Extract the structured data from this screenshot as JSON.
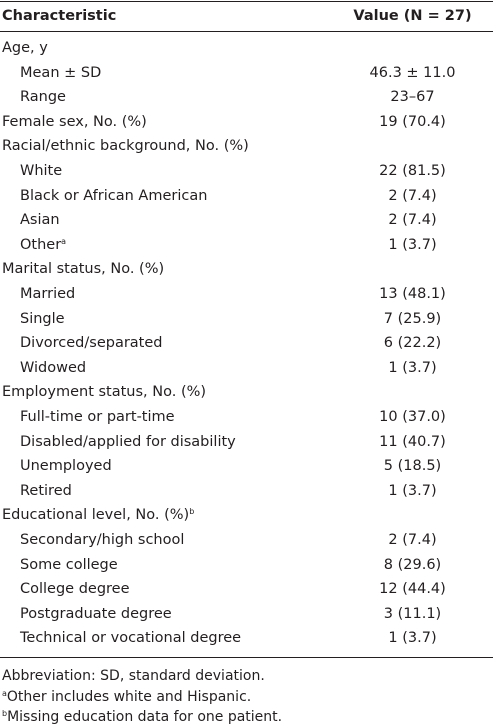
{
  "table": {
    "header": [
      "Characteristic",
      "Value (N = 27)"
    ],
    "groups": [
      {
        "label": "Age, y",
        "items": [
          {
            "label": "Mean ± SD",
            "value": "46.3 ± 11.0"
          },
          {
            "label": "Range",
            "value": "23–67"
          }
        ]
      },
      {
        "label": "Female sex, No. (%)",
        "value": "19 (70.4)"
      },
      {
        "label": "Racial/ethnic background, No. (%)",
        "items": [
          {
            "label": "White",
            "value": "22 (81.5)"
          },
          {
            "label": "Black or African American",
            "value": "2 (7.4)"
          },
          {
            "label": "Asian",
            "value": "2 (7.4)"
          },
          {
            "label": "Other",
            "sup": "a",
            "value": "1 (3.7)"
          }
        ]
      },
      {
        "label": "Marital status, No. (%)",
        "items": [
          {
            "label": "Married",
            "value": "13 (48.1)"
          },
          {
            "label": "Single",
            "value": "7 (25.9)"
          },
          {
            "label": "Divorced/separated",
            "value": "6 (22.2)"
          },
          {
            "label": "Widowed",
            "value": "1 (3.7)"
          }
        ]
      },
      {
        "label": "Employment status, No. (%)",
        "items": [
          {
            "label": "Full-time or part-time",
            "value": "10 (37.0)"
          },
          {
            "label": "Disabled/applied for disability",
            "value": "11 (40.7)"
          },
          {
            "label": "Unemployed",
            "value": "5 (18.5)"
          },
          {
            "label": "Retired",
            "value": "1 (3.7)"
          }
        ]
      },
      {
        "label": "Educational level, No. (%)",
        "sup": "b",
        "items": [
          {
            "label": "Secondary/high school",
            "value": "2 (7.4)"
          },
          {
            "label": "Some college",
            "value": "8 (29.6)"
          },
          {
            "label": "College degree",
            "value": "12 (44.4)"
          },
          {
            "label": "Postgraduate degree",
            "value": "3 (11.1)"
          },
          {
            "label": "Technical or vocational degree",
            "value": "1 (3.7)"
          }
        ]
      }
    ],
    "footnotes": [
      {
        "text": "Abbreviation: SD, standard deviation."
      },
      {
        "sup": "a",
        "text": "Other includes white and Hispanic."
      },
      {
        "sup": "b",
        "text": "Missing education data for one patient."
      }
    ]
  }
}
